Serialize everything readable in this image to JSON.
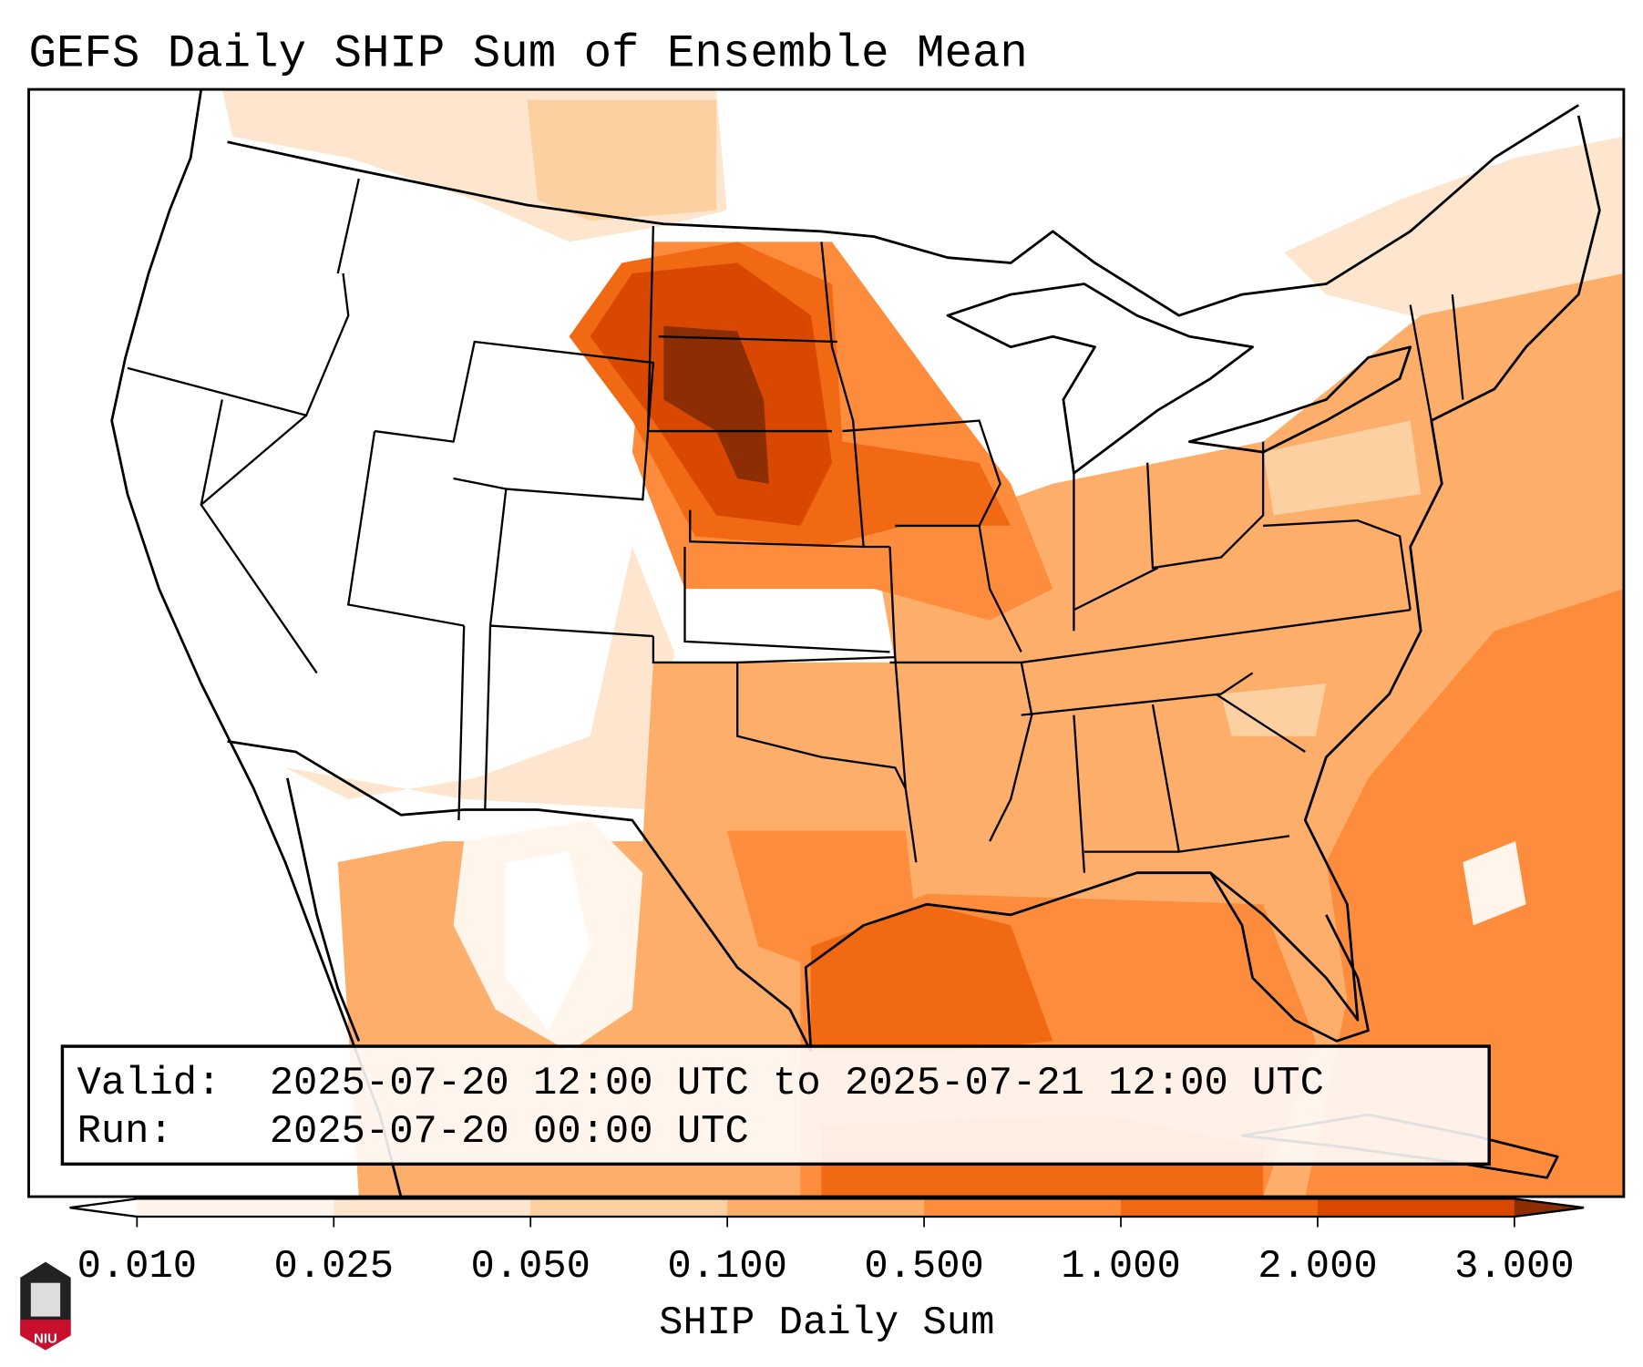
{
  "title": "GEFS Daily SHIP Sum of Ensemble Mean",
  "info_box": {
    "valid_label": "Valid:",
    "valid_value": "2025-07-20 12:00 UTC to 2025-07-21 12:00 UTC",
    "run_label": "Run:",
    "run_value": "2025-07-20 00:00 UTC"
  },
  "colorbar": {
    "label": "SHIP Daily Sum",
    "ticks": [
      "0.010",
      "0.025",
      "0.050",
      "0.100",
      "0.500",
      "1.000",
      "2.000",
      "3.000"
    ],
    "colors": [
      "#fff5eb",
      "#fee6ce",
      "#fdd0a2",
      "#fdae6b",
      "#fd8d3c",
      "#f16913",
      "#d94801",
      "#8c2d04"
    ],
    "under_color": "#ffffff",
    "over_color": "#8c2d04"
  },
  "logo": {
    "text": "NIU"
  }
}
